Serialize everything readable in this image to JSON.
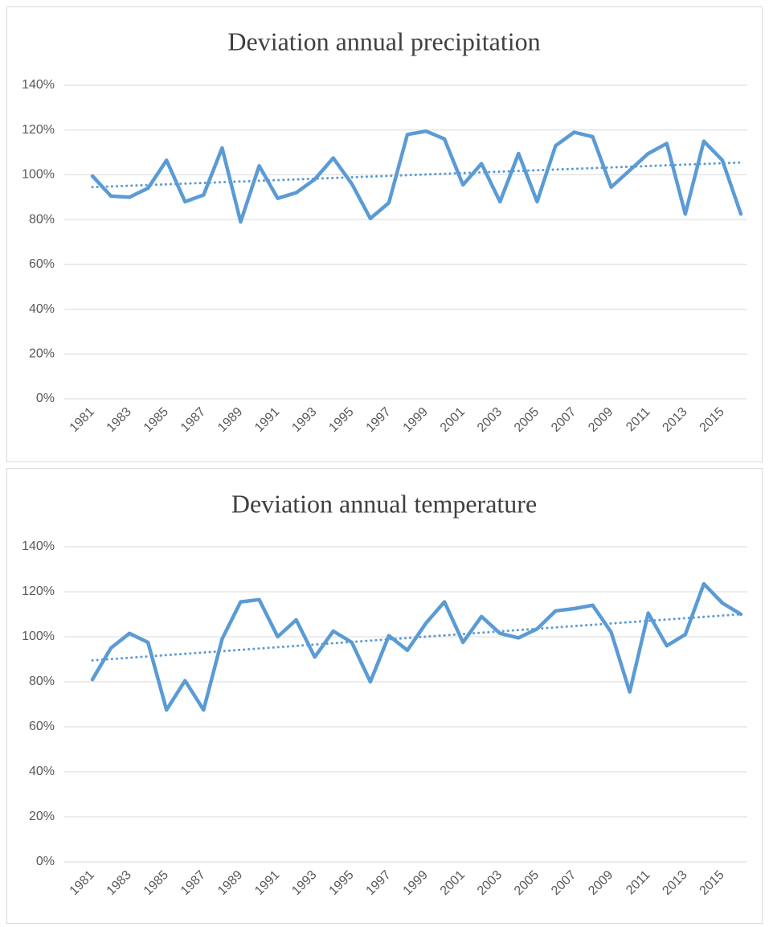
{
  "chart_data": [
    {
      "type": "line",
      "title": "Deviation annual precipitation",
      "categories": [
        "1981",
        null,
        "1983",
        null,
        "1985",
        null,
        "1987",
        null,
        "1989",
        null,
        "1991",
        null,
        "1993",
        null,
        "1995",
        null,
        "1997",
        null,
        "1999",
        null,
        "2001",
        null,
        "2003",
        null,
        "2005",
        null,
        "2007",
        null,
        "2009",
        null,
        "2011",
        null,
        "2013",
        null,
        "2015",
        null
      ],
      "series": [
        {
          "color": "#5b9bd5",
          "values": [
            99.5,
            90.5,
            90,
            94,
            106.5,
            88,
            91,
            112,
            79,
            104,
            89.5,
            92,
            98,
            107.5,
            96,
            80.5,
            87.5,
            118,
            119.5,
            116,
            95.5,
            105,
            88,
            109.5,
            88,
            113,
            119,
            117,
            94.5,
            102,
            109.5,
            114,
            82.5,
            115,
            106.5,
            82.5
          ],
          "trend": [
            94.5,
            105.5
          ]
        }
      ],
      "ylim": [
        0,
        140
      ],
      "yticks": [
        {
          "value": 0,
          "label": "0%"
        },
        {
          "value": 20,
          "label": "20%"
        },
        {
          "value": 40,
          "label": "40%"
        },
        {
          "value": 60,
          "label": "60%"
        },
        {
          "value": 80,
          "label": "80%"
        },
        {
          "value": 100,
          "label": "100%"
        },
        {
          "value": 120,
          "label": "120%"
        },
        {
          "value": 140,
          "label": "140%"
        }
      ],
      "grid": true
    },
    {
      "type": "line",
      "title": "Deviation annual temperature",
      "categories": [
        "1981",
        null,
        "1983",
        null,
        "1985",
        null,
        "1987",
        null,
        "1989",
        null,
        "1991",
        null,
        "1993",
        null,
        "1995",
        null,
        "1997",
        null,
        "1999",
        null,
        "2001",
        null,
        "2003",
        null,
        "2005",
        null,
        "2007",
        null,
        "2009",
        null,
        "2011",
        null,
        "2013",
        null,
        "2015",
        null
      ],
      "series": [
        {
          "color": "#5b9bd5",
          "values": [
            81,
            95,
            101.5,
            97.5,
            67.5,
            80.5,
            67.5,
            99,
            115.5,
            116.5,
            100,
            107.5,
            91,
            102.5,
            97.5,
            80,
            100.5,
            94,
            106,
            115.5,
            97.5,
            109,
            101.5,
            99.5,
            103.5,
            111.5,
            112.5,
            114,
            102,
            75.5,
            110.5,
            96,
            101,
            123.5,
            115,
            110
          ],
          "trend": [
            89.5,
            110
          ]
        }
      ],
      "ylim": [
        0,
        140
      ],
      "yticks": [
        {
          "value": 0,
          "label": "0%"
        },
        {
          "value": 20,
          "label": "20%"
        },
        {
          "value": 40,
          "label": "40%"
        },
        {
          "value": 60,
          "label": "60%"
        },
        {
          "value": 80,
          "label": "80%"
        },
        {
          "value": 100,
          "label": "100%"
        },
        {
          "value": 120,
          "label": "120%"
        },
        {
          "value": 140,
          "label": "140%"
        }
      ],
      "grid": true
    }
  ]
}
